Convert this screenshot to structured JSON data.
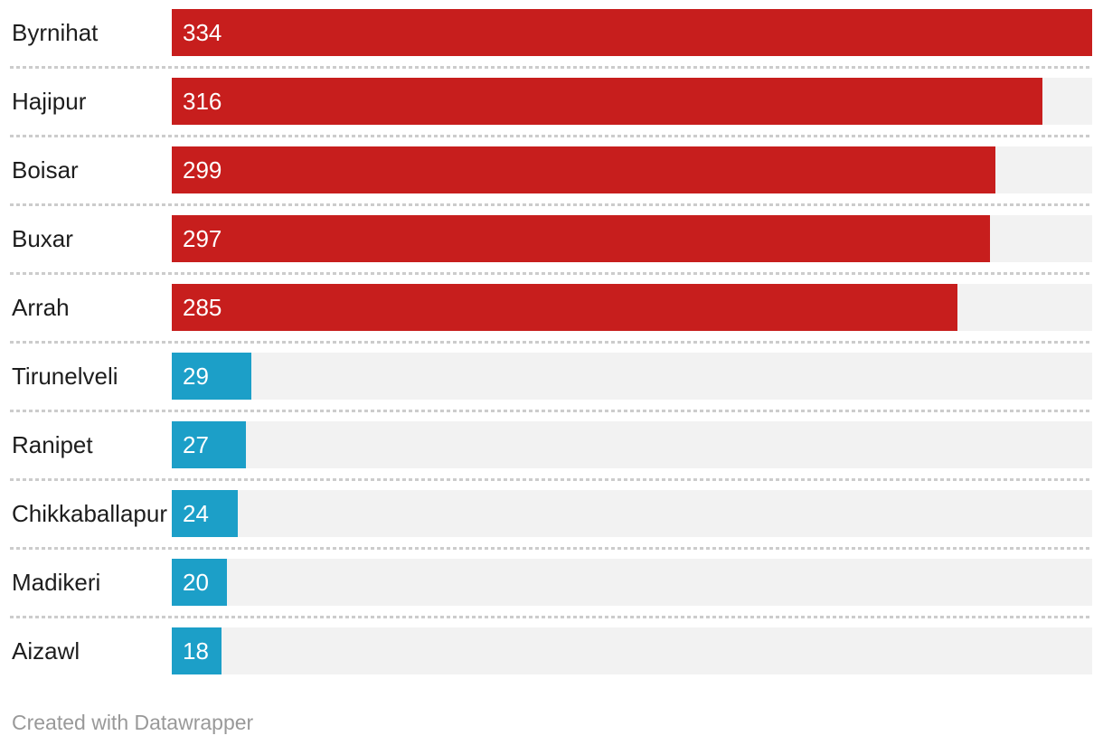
{
  "chart_data": {
    "type": "bar",
    "orientation": "horizontal",
    "title": "",
    "categories": [
      "Byrnihat",
      "Hajipur",
      "Boisar",
      "Buxar",
      "Arrah",
      "Tirunelveli",
      "Ranipet",
      "Chikkaballapur",
      "Madikeri",
      "Aizawl"
    ],
    "values": [
      334,
      316,
      299,
      297,
      285,
      29,
      27,
      24,
      20,
      18
    ],
    "value_labels": [
      "334",
      "316",
      "299",
      "297",
      "285",
      "29",
      "27",
      "24",
      "20",
      "18"
    ],
    "bar_colors": [
      "#c71e1d",
      "#c71e1d",
      "#c71e1d",
      "#c71e1d",
      "#c71e1d",
      "#1c9fc8",
      "#1c9fc8",
      "#1c9fc8",
      "#1c9fc8",
      "#1c9fc8"
    ],
    "xlim": [
      0,
      334
    ],
    "grid": false,
    "legend": "none",
    "value_label_position": "inside-start",
    "track_color": "#f2f2f2"
  },
  "footer": {
    "attribution": "Created with Datawrapper"
  },
  "colors": {
    "high_series": "#c71e1d",
    "low_series": "#1c9fc8",
    "track": "#f2f2f2",
    "separator": "#cccccc",
    "label_text": "#1d1d1d",
    "value_text": "#ffffff",
    "footer_text": "#999999",
    "background": "#ffffff"
  }
}
